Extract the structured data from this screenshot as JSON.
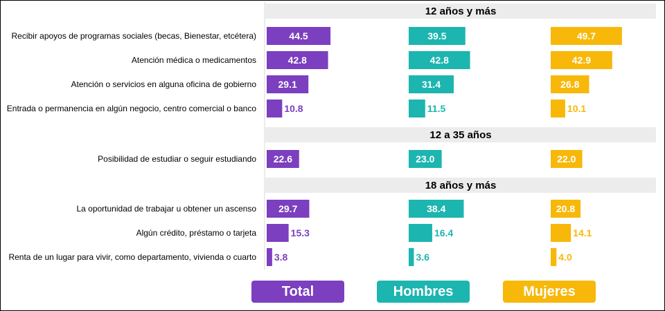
{
  "chart_data": {
    "type": "bar",
    "orientation": "horizontal",
    "sections": [
      {
        "title": "12 años y más",
        "categories": [
          "Recibir apoyos de programas sociales (becas, Bienestar, etcétera)",
          "Atención médica o medicamentos",
          "Atención o servicios en alguna oficina de gobierno",
          "Entrada o permanencia en algún negocio, centro comercial o banco"
        ],
        "series": [
          {
            "name": "Total",
            "values": [
              44.5,
              42.8,
              29.1,
              10.8
            ]
          },
          {
            "name": "Hombres",
            "values": [
              39.5,
              42.8,
              31.4,
              11.5
            ]
          },
          {
            "name": "Mujeres",
            "values": [
              49.7,
              42.9,
              26.8,
              10.1
            ]
          }
        ]
      },
      {
        "title": "12 a 35 años",
        "categories": [
          "Posibilidad de estudiar o seguir estudiando"
        ],
        "series": [
          {
            "name": "Total",
            "values": [
              22.6
            ]
          },
          {
            "name": "Hombres",
            "values": [
              23.0
            ]
          },
          {
            "name": "Mujeres",
            "values": [
              22.0
            ]
          }
        ]
      },
      {
        "title": "18 años y más",
        "categories": [
          "La oportunidad de trabajar u obtener un ascenso",
          "Algún crédito, préstamo o tarjeta",
          "Renta de un lugar para vivir, como departamento, vivienda o cuarto"
        ],
        "series": [
          {
            "name": "Total",
            "values": [
              29.7,
              15.3,
              3.8
            ]
          },
          {
            "name": "Hombres",
            "values": [
              38.4,
              16.4,
              3.6
            ]
          },
          {
            "name": "Mujeres",
            "values": [
              20.8,
              14.1,
              4.0
            ]
          }
        ]
      }
    ],
    "colors": {
      "Total": "#7b3fbf",
      "Hombres": "#1cb5b0",
      "Mujeres": "#f7b80a"
    },
    "legend": [
      "Total",
      "Hombres",
      "Mujeres"
    ],
    "legend_placement": "bottom",
    "grid": false
  }
}
